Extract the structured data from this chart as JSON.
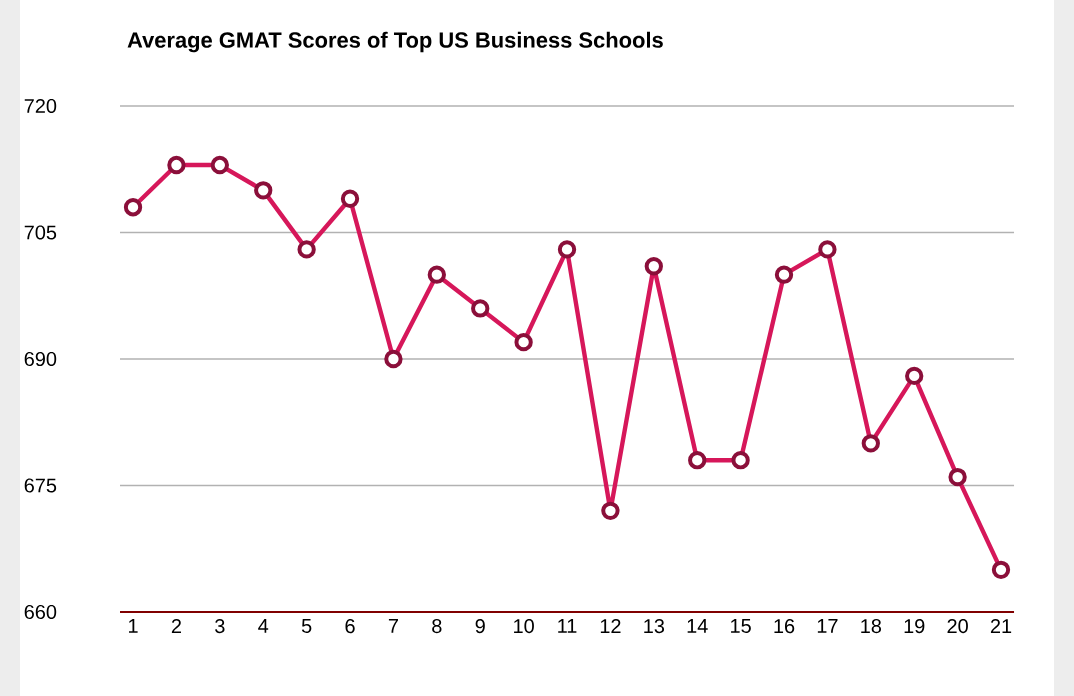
{
  "chart_data": {
    "type": "line",
    "title": "Average GMAT Scores of Top US Business Schools",
    "categories": [
      "1",
      "2",
      "3",
      "4",
      "5",
      "6",
      "7",
      "8",
      "9",
      "10",
      "11",
      "12",
      "13",
      "14",
      "15",
      "16",
      "17",
      "18",
      "19",
      "20",
      "21"
    ],
    "series": [
      {
        "color": "#d6175a",
        "values": [
          708,
          713,
          713,
          710,
          703,
          709,
          690,
          700,
          696,
          692,
          703,
          672,
          701,
          678,
          678,
          700,
          703,
          680,
          688,
          676,
          665
        ]
      }
    ],
    "ylim": [
      660,
      720
    ],
    "yticks": [
      660,
      675,
      690,
      705,
      720
    ],
    "grid": "y",
    "marker": "circle",
    "line_style": "solid"
  }
}
